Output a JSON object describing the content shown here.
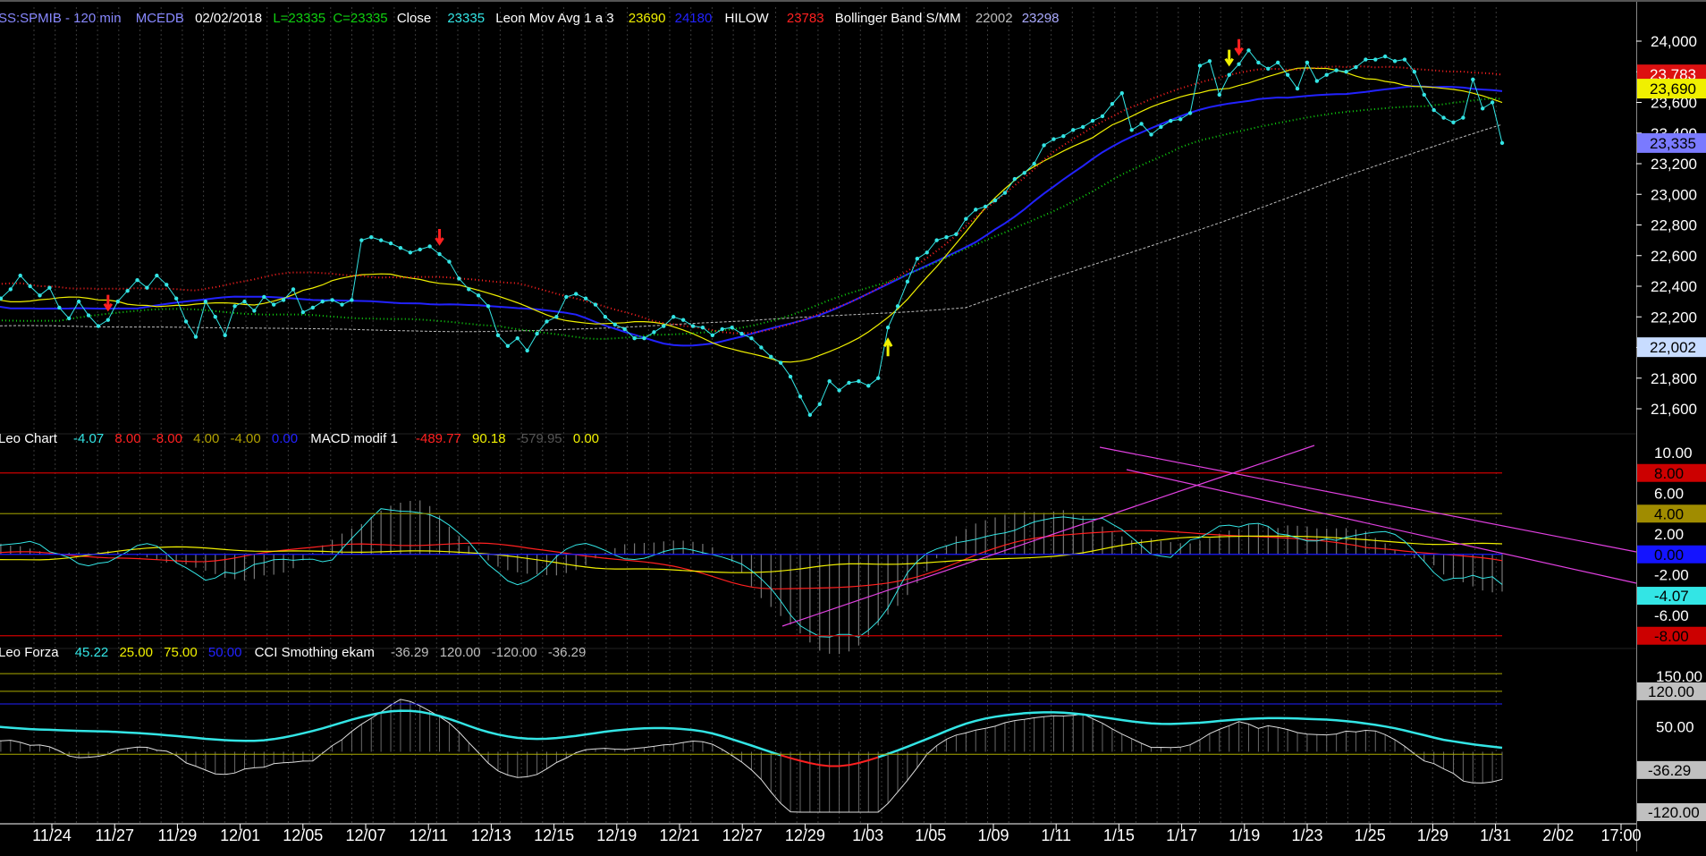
{
  "colors": {
    "background": "#000000",
    "cyan": "#33e5e5",
    "blue": "#2222ff",
    "yellow": "#f0f000",
    "red": "#ff2020",
    "green": "#10d010",
    "white": "#ffffff",
    "gray": "#bdbdbd",
    "magenta": "#e040e0",
    "olive": "#b0a000",
    "slateblue": "#8888ff"
  },
  "header": {
    "symbol": "SS:SPMIB - 120 min",
    "source": "MCEDB",
    "date": "02/02/2018",
    "low": "L=23335",
    "close_val": "C=23335",
    "close_label": "Close",
    "close_num": "23335",
    "mavg_label": "Leon Mov Avg 1 a 3",
    "mavg_v1": "23690",
    "mavg_v2": "24180",
    "hilow_label": "HILOW",
    "hilow_v": "23783",
    "boll_label": "Bollinger Band S/MM",
    "boll_v1": "22002",
    "boll_v2": "23298"
  },
  "macd_header": {
    "name": "Leo Chart",
    "v1": "-4.07",
    "v2": "8.00",
    "v3": "-8.00",
    "v4": "4.00",
    "v5": "-4.00",
    "v6": "0.00",
    "macd_label": "MACD modif 1",
    "m1": "-489.77",
    "m2": "90.18",
    "m3": "-579.95",
    "m4": "0.00"
  },
  "cci_header": {
    "name": "Leo Forza",
    "v1": "45.22",
    "v2": "25.00",
    "v3": "75.00",
    "v4": "50.00",
    "cci_label": "CCI Smothing ekam",
    "c1": "-36.29",
    "c2": "120.00",
    "c3": "-120.00",
    "c4": "-36.29"
  },
  "chart_data": [
    {
      "type": "line",
      "name": "price",
      "ylim": [
        21400,
        24120
      ],
      "y_ticks": [
        "24,000",
        "23,800",
        "23,600",
        "23,400",
        "23,200",
        "23,000",
        "22,800",
        "22,600",
        "22,400",
        "22,200",
        "22,000",
        "21,800",
        "21,600"
      ],
      "x_labels": [
        "11/24",
        "11/27",
        "11/29",
        "12/01",
        "12/05",
        "12/07",
        "12/11",
        "12/13",
        "12/15",
        "12/19",
        "12/21",
        "12/27",
        "12/29",
        "1/03",
        "1/05",
        "1/09",
        "1/11",
        "1/15",
        "1/17",
        "1/19",
        "1/23",
        "1/25",
        "1/29",
        "1/31",
        "2/02",
        "17:00"
      ],
      "close": [
        22300,
        22320,
        22380,
        22470,
        22400,
        22340,
        22390,
        22260,
        22190,
        22300,
        22210,
        22140,
        22180,
        22300,
        22370,
        22440,
        22390,
        22470,
        22410,
        22320,
        22170,
        22070,
        22300,
        22200,
        22080,
        22270,
        22300,
        22240,
        22330,
        22280,
        22310,
        22380,
        22230,
        22260,
        22300,
        22310,
        22280,
        22310,
        22700,
        22720,
        22700,
        22680,
        22650,
        22620,
        22640,
        22660,
        22610,
        22560,
        22450,
        22380,
        22340,
        22270,
        22080,
        22010,
        22060,
        21980,
        22090,
        22170,
        22200,
        22330,
        22350,
        22320,
        22280,
        22200,
        22150,
        22120,
        22060,
        22060,
        22100,
        22140,
        22200,
        22180,
        22140,
        22130,
        22080,
        22120,
        22130,
        22090,
        22060,
        22000,
        21940,
        21900,
        21810,
        21680,
        21560,
        21630,
        21780,
        21720,
        21770,
        21780,
        21750,
        21800,
        22130,
        22270,
        22430,
        22580,
        22620,
        22700,
        22720,
        22740,
        22840,
        22900,
        22920,
        22960,
        23010,
        23100,
        23140,
        23200,
        23320,
        23360,
        23380,
        23420,
        23440,
        23480,
        23510,
        23590,
        23660,
        23420,
        23460,
        23390,
        23440,
        23480,
        23490,
        23530,
        23840,
        23870,
        23650,
        23780,
        23850,
        23940,
        23860,
        23820,
        23860,
        23780,
        23690,
        23860,
        23740,
        23780,
        23810,
        23800,
        23830,
        23880,
        23880,
        23900,
        23870,
        23880,
        23800,
        23650,
        23550,
        23500,
        23470,
        23500,
        23750,
        23560,
        23600,
        23335
      ],
      "signal_marks": [
        {
          "label": "sell",
          "color": "red",
          "index": 12
        },
        {
          "label": "sell",
          "color": "red",
          "index": 46
        },
        {
          "label": "buy",
          "color": "yellow",
          "index": 92
        },
        {
          "label": "sell",
          "color": "yellow",
          "index": 127
        },
        {
          "label": "sell",
          "color": "red",
          "index": 128
        }
      ],
      "last_values": [
        {
          "label": "23,783",
          "color": "red"
        },
        {
          "label": "23,690",
          "color": "yellow"
        },
        {
          "label": "23,335",
          "color": "slateblue"
        },
        {
          "label": "22,002",
          "color": "lightblue"
        }
      ]
    },
    {
      "type": "line",
      "name": "macd",
      "ylim": [
        -9,
        11
      ],
      "y_ticks": [
        "10.00",
        "6.00",
        "2.00",
        "-2.00",
        "-6.00"
      ],
      "levels": [
        {
          "value": 8,
          "label": "8.00",
          "color": "red"
        },
        {
          "value": 4,
          "label": "4.00",
          "color": "olive"
        },
        {
          "value": 0,
          "label": "0.00",
          "color": "blue"
        },
        {
          "value": -4.07,
          "label": "-4.07",
          "color": "cyan"
        },
        {
          "value": -8,
          "label": "-8.00",
          "color": "red"
        }
      ]
    },
    {
      "type": "line",
      "name": "cci",
      "ylim": [
        -125,
        180
      ],
      "y_ticks": [
        "150.00",
        "50.00"
      ],
      "levels": [
        {
          "value": 120,
          "label": "120.00",
          "color": "gray"
        },
        {
          "value": -36.29,
          "label": "-36.29",
          "color": "gray"
        },
        {
          "value": -120,
          "label": "-120.00",
          "color": "gray"
        }
      ]
    }
  ]
}
